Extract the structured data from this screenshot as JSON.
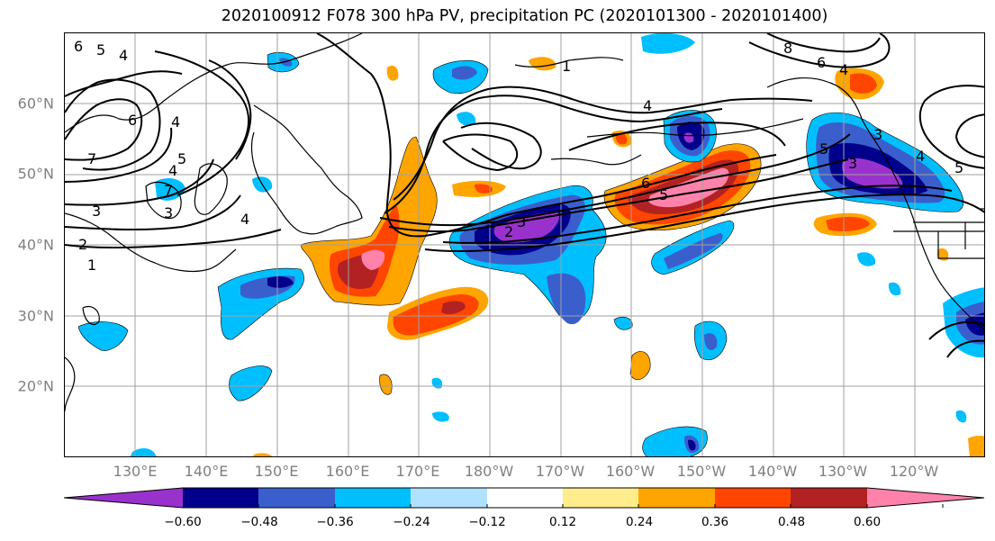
{
  "title": "2020100912 F078 300 hPa PV, precipitation PC (2020101300 - 2020101400)",
  "map": {
    "lat_labels": [
      "20°N",
      "30°N",
      "40°N",
      "50°N",
      "60°N"
    ],
    "lon_labels": [
      "130°E",
      "140°E",
      "150°E",
      "160°E",
      "170°E",
      "180°W",
      "170°W",
      "160°W",
      "150°W",
      "140°W",
      "130°W",
      "120°W"
    ],
    "contour_labels": [
      "6",
      "5",
      "4",
      "6",
      "7",
      "5",
      "4",
      "7",
      "3",
      "2",
      "1",
      "3",
      "4",
      "4",
      "1",
      "4",
      "5",
      "2",
      "3",
      "8",
      "6",
      "4",
      "6",
      "3",
      "4",
      "5",
      "5",
      "3"
    ],
    "fill_colors": {
      "purple": "#9932cc",
      "navy": "#00008b",
      "blue": "#3a5fcd",
      "deepsky": "#00bfff",
      "lightblue": "#b0e2ff",
      "lightyellow": "#ffec8b",
      "orange": "#ffa500",
      "orangered": "#ff4500",
      "firebrick": "#b22222",
      "pink": "#ff82ab"
    }
  },
  "colorbar": {
    "ticks": [
      "−0.60",
      "−0.48",
      "−0.36",
      "−0.24",
      "−0.12",
      "0.12",
      "0.24",
      "0.36",
      "0.48",
      "0.60"
    ],
    "colors": [
      "#9932cc",
      "#00008b",
      "#3a5fcd",
      "#00bfff",
      "#b0e2ff",
      "#ffffff",
      "#ffec8b",
      "#ffa500",
      "#ff4500",
      "#b22222",
      "#ff82ab"
    ]
  }
}
